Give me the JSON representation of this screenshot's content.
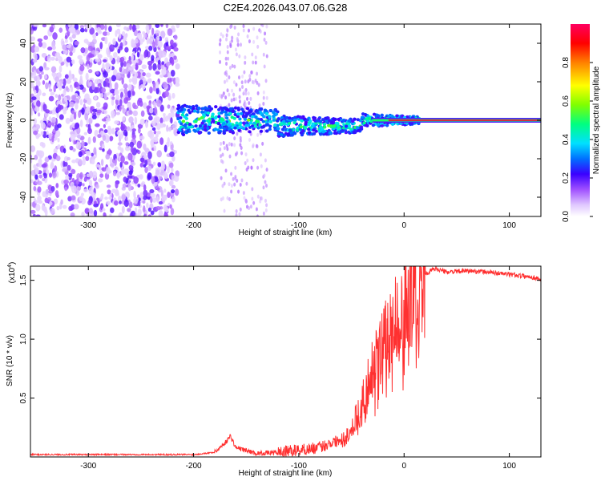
{
  "title": "C2E4.2026.043.07.06.G28",
  "chart_data": [
    {
      "type": "heatmap",
      "xlabel": "Height of straight line (km)",
      "ylabel": "Frequency (Hz)",
      "xlim": [
        -355,
        130
      ],
      "ylim": [
        -50,
        50
      ],
      "xticks": [
        -300,
        -200,
        -100,
        0,
        100
      ],
      "yticks": [
        -40,
        -20,
        0,
        20,
        40
      ],
      "colorbar": {
        "label": "Normalized spectral amplitude",
        "range": [
          0,
          1
        ],
        "ticks": [
          "0.0",
          "0.2",
          "0.4",
          "0.6",
          "0.8"
        ],
        "tick_values": [
          0.0,
          0.2,
          0.4,
          0.6,
          0.8
        ],
        "colors": [
          "#ffffff",
          "#d8b8ff",
          "#8a2be2",
          "#3b00ff",
          "#0060ff",
          "#00e0ff",
          "#00ff60",
          "#7fff00",
          "#ffff00",
          "#ff8000",
          "#ff0000",
          "#ff0060"
        ]
      },
      "features": [
        {
          "name": "noise region",
          "x_range": [
            -355,
            -215
          ],
          "freq_range": [
            -50,
            50
          ],
          "amplitude": 0.15
        },
        {
          "name": "noise band",
          "x_range": [
            -175,
            -130
          ],
          "freq_range": [
            -50,
            50
          ],
          "amplitude": 0.08
        },
        {
          "name": "tone",
          "x_range": [
            -215,
            15
          ],
          "freq_center": 0,
          "amplitude_range": [
            0.2,
            0.6
          ]
        },
        {
          "name": "strong tone",
          "x_range": [
            -30,
            130
          ],
          "freq_center": 0,
          "amplitude": 0.95
        }
      ]
    },
    {
      "type": "line",
      "xlabel": "Height of straight line (km)",
      "ylabel": "SNR (10 * v/v)",
      "yscale_label": "(x10",
      "yscale_exp": "4",
      "yscale_close": ")",
      "xlim": [
        -355,
        130
      ],
      "ylim": [
        0,
        1.62
      ],
      "xticks": [
        -300,
        -200,
        -100,
        0,
        100
      ],
      "yticks": [
        "0.5",
        "1.0",
        "1.5"
      ],
      "ytick_values": [
        0.5,
        1.0,
        1.5
      ],
      "color": "#ff3030",
      "series": [
        {
          "name": "SNR",
          "x": [
            -355,
            -300,
            -250,
            -200,
            -180,
            -170,
            -165,
            -160,
            -140,
            -120,
            -100,
            -80,
            -70,
            -60,
            -50,
            -45,
            -40,
            -35,
            -30,
            -25,
            -20,
            -15,
            -10,
            -5,
            0,
            5,
            10,
            15,
            20,
            25,
            30,
            40,
            60,
            80,
            100,
            120,
            130
          ],
          "values": [
            0.02,
            0.02,
            0.02,
            0.02,
            0.04,
            0.12,
            0.18,
            0.08,
            0.03,
            0.04,
            0.06,
            0.08,
            0.12,
            0.15,
            0.25,
            0.35,
            0.45,
            0.6,
            0.75,
            0.85,
            0.95,
            1.05,
            1.15,
            1.22,
            1.28,
            1.35,
            1.45,
            1.5,
            1.55,
            1.58,
            1.6,
            1.57,
            1.58,
            1.57,
            1.55,
            1.53,
            1.51
          ]
        }
      ]
    }
  ]
}
